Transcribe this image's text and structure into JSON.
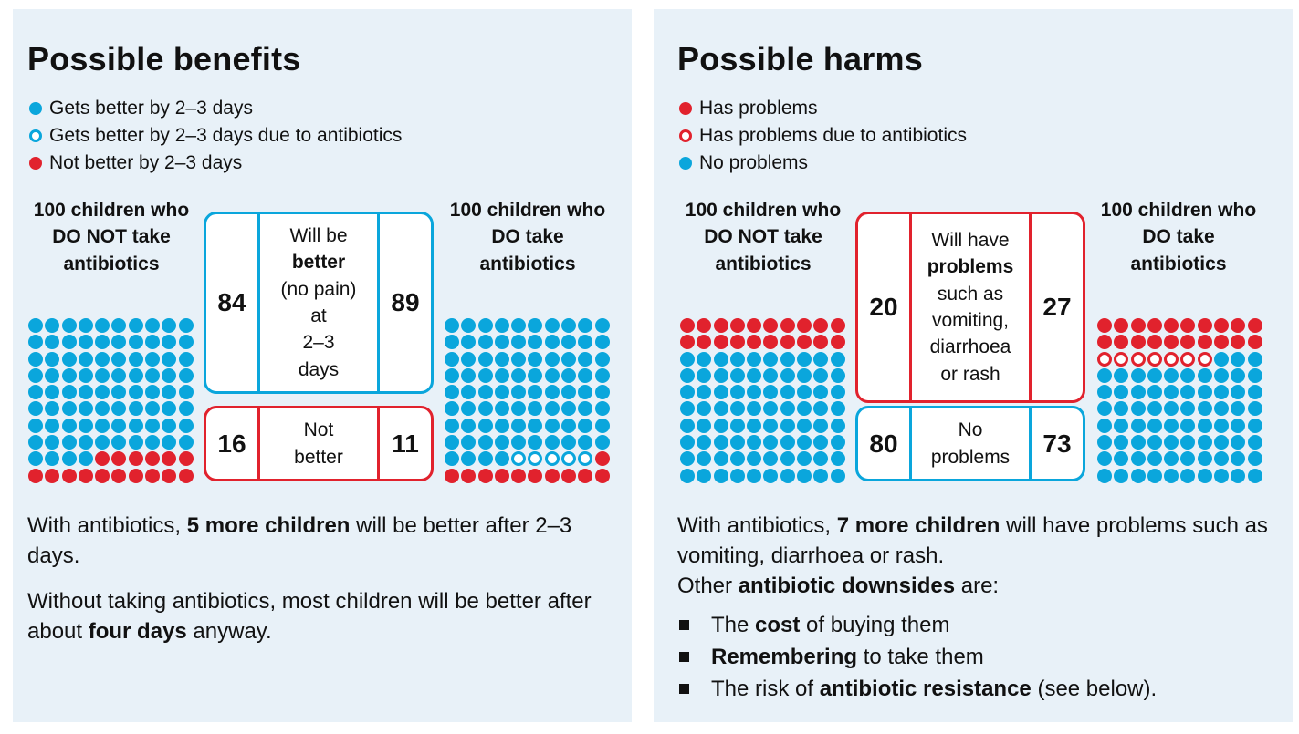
{
  "benefits": {
    "title": "Possible benefits",
    "legend": [
      {
        "label": "Gets better by 2–3 days",
        "marker": "filled-blue",
        "icon": "filled-blue-circle-icon"
      },
      {
        "label": "Gets better by 2–3 days due to antibiotics",
        "marker": "hollow-blue",
        "icon": "hollow-blue-circle-icon"
      },
      {
        "label": "Not better by 2–3 days",
        "marker": "filled-red",
        "icon": "filled-red-circle-icon"
      }
    ],
    "group_no": "100 children who DO NOT take antibiotics",
    "group_yes": "100 children who DO take antibiotics",
    "box_top": {
      "left": "84",
      "right": "89",
      "lines": [
        {
          "text": "Will be",
          "bold": false
        },
        {
          "text": "better",
          "bold": true
        },
        {
          "text": "(no pain)",
          "bold": false
        },
        {
          "text": "at",
          "bold": false
        },
        {
          "text": "2–3",
          "bold": false
        },
        {
          "text": "days",
          "bold": false
        }
      ]
    },
    "box_bottom": {
      "left": "16",
      "right": "11",
      "lines": [
        {
          "text": "Not",
          "bold": false
        },
        {
          "text": "better",
          "bold": false
        }
      ]
    },
    "text": [
      [
        {
          "t": "With antibiotics, ",
          "b": false
        },
        {
          "t": "5 more children",
          "b": true
        },
        {
          "t": " will be better after 2–3 days.",
          "b": false
        }
      ],
      [
        {
          "t": "Without taking antibiotics, most children will be better after about ",
          "b": false
        },
        {
          "t": "four days",
          "b": true
        },
        {
          "t": " anyway.",
          "b": false
        }
      ]
    ]
  },
  "harms": {
    "title": "Possible harms",
    "legend": [
      {
        "label": "Has problems",
        "marker": "filled-red",
        "icon": "filled-red-circle-icon"
      },
      {
        "label": "Has problems due to antibiotics",
        "marker": "hollow-red",
        "icon": "hollow-red-circle-icon"
      },
      {
        "label": "No problems",
        "marker": "filled-blue",
        "icon": "filled-blue-circle-icon"
      }
    ],
    "group_no": "100 children who DO NOT take antibiotics",
    "group_yes": "100 children who DO take antibiotics",
    "box_top": {
      "left": "20",
      "right": "27",
      "lines": [
        {
          "text": "Will have",
          "bold": false
        },
        {
          "text": "problems",
          "bold": true
        },
        {
          "text": "such as",
          "bold": false
        },
        {
          "text": "vomiting,",
          "bold": false
        },
        {
          "text": "diarrhoea",
          "bold": false
        },
        {
          "text": "or rash",
          "bold": false
        }
      ]
    },
    "box_bottom": {
      "left": "80",
      "right": "73",
      "lines": [
        {
          "text": "No",
          "bold": false
        },
        {
          "text": "problems",
          "bold": false
        }
      ]
    },
    "text": [
      [
        {
          "t": "With antibiotics, ",
          "b": false
        },
        {
          "t": "7 more children",
          "b": true
        },
        {
          "t": " will have problems such as vomiting, diarrhoea or rash.",
          "b": false
        }
      ],
      [
        {
          "t": "Other ",
          "b": false
        },
        {
          "t": "antibiotic downsides",
          "b": true
        },
        {
          "t": " are:",
          "b": false
        }
      ]
    ],
    "bullets": [
      [
        {
          "t": "The ",
          "b": false
        },
        {
          "t": "cost",
          "b": true
        },
        {
          "t": " of buying them",
          "b": false
        }
      ],
      [
        {
          "t": "Remembering",
          "b": true
        },
        {
          "t": " to take them",
          "b": false
        }
      ],
      [
        {
          "t": "The risk of ",
          "b": false
        },
        {
          "t": "antibiotic resistance",
          "b": true
        },
        {
          "t": " (see below).",
          "b": false
        }
      ]
    ]
  },
  "chart_data": [
    {
      "type": "icon-array",
      "title": "Possible benefits",
      "total": 100,
      "groups": [
        {
          "name": "100 children who DO NOT take antibiotics",
          "counts": {
            "Gets better by 2–3 days": 84,
            "Gets better by 2–3 days due to antibiotics": 0,
            "Not better by 2–3 days": 16
          }
        },
        {
          "name": "100 children who DO take antibiotics",
          "counts": {
            "Gets better by 2–3 days": 84,
            "Gets better by 2–3 days due to antibiotics": 5,
            "Not better by 2–3 days": 11
          }
        }
      ]
    },
    {
      "type": "icon-array",
      "title": "Possible harms",
      "total": 100,
      "groups": [
        {
          "name": "100 children who DO NOT take antibiotics",
          "counts": {
            "Has problems": 20,
            "Has problems due to antibiotics": 0,
            "No problems": 80
          }
        },
        {
          "name": "100 children who DO take antibiotics",
          "counts": {
            "Has problems": 20,
            "Has problems due to antibiotics": 7,
            "No problems": 73
          }
        }
      ]
    }
  ],
  "colors": {
    "blue": "#0aa6dc",
    "red": "#e1222d",
    "panel_bg": "#e8f1f8"
  }
}
